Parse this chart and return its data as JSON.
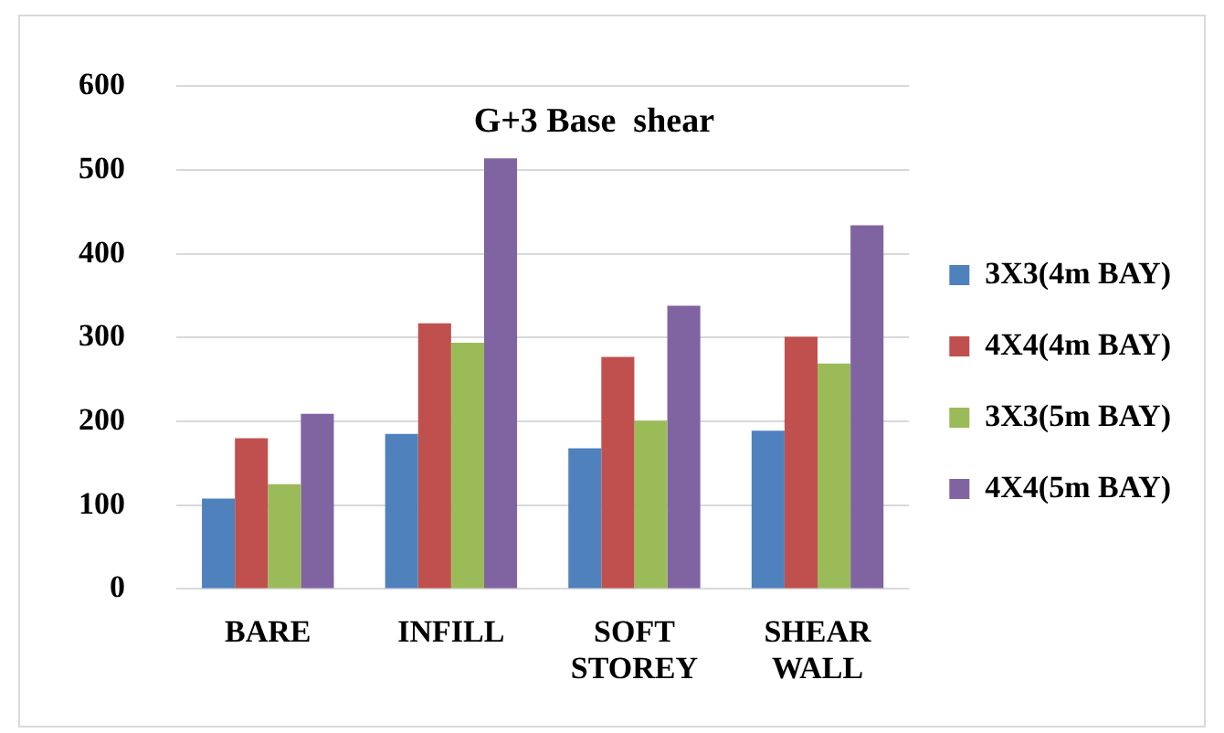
{
  "chart_data": {
    "type": "bar",
    "title": "G+3 Base  shear",
    "categories": [
      "BARE",
      "INFILL",
      "SOFT STOREY",
      "SHEAR WALL"
    ],
    "series": [
      {
        "name": "3X3(4m BAY)",
        "color": "#4f81bd",
        "values": [
          108,
          185,
          168,
          189
        ]
      },
      {
        "name": "4X4(4m BAY)",
        "color": "#c0504d",
        "values": [
          180,
          317,
          277,
          301
        ]
      },
      {
        "name": "3X3(5m BAY)",
        "color": "#9bbb59",
        "values": [
          125,
          294,
          201,
          269
        ]
      },
      {
        "name": "4X4(5m BAY)",
        "color": "#8064a2",
        "values": [
          209,
          514,
          338,
          434
        ]
      }
    ],
    "ylim": [
      0,
      600
    ],
    "yticks": [
      0,
      100,
      200,
      300,
      400,
      500,
      600
    ],
    "grid": "y",
    "legend": "right"
  }
}
